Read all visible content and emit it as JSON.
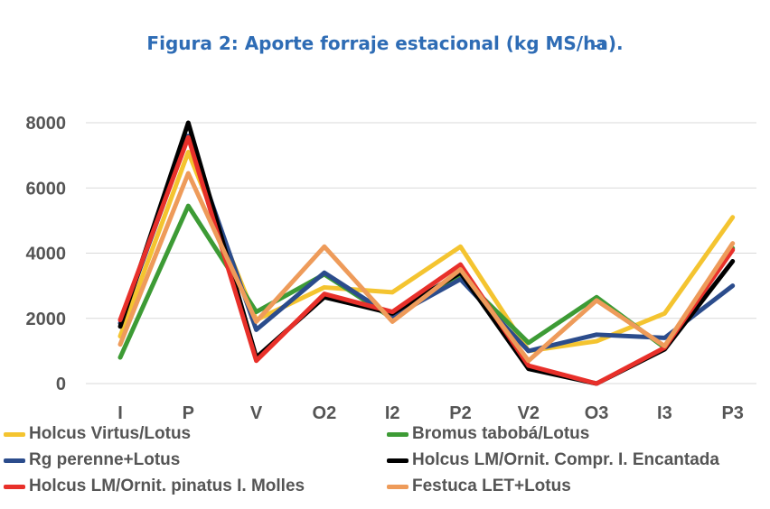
{
  "chart_data": {
    "type": "line",
    "title": "Figura 2: Aporte forraje estacional (kg MS/ha",
    "title_superscript": "-1",
    "title_end": ").",
    "categories": [
      "I",
      "P",
      "V",
      "O2",
      "I2",
      "P2",
      "V2",
      "O3",
      "I3",
      "P3"
    ],
    "ylim": [
      0,
      8000
    ],
    "yticks": [
      "0",
      "2000",
      "4000",
      "6000",
      "8000"
    ],
    "ytick_values": [
      0,
      2000,
      4000,
      6000,
      8000
    ],
    "grid": true,
    "legend_position": "bottom",
    "series": [
      {
        "name": "Holcus Virtus/Lotus",
        "color": "#f4c430",
        "values": [
          1450,
          7100,
          1950,
          2950,
          2800,
          4200,
          1000,
          1300,
          2150,
          5100
        ]
      },
      {
        "name": "Bromus tabobá/Lotus",
        "color": "#3d9b35",
        "values": [
          800,
          5450,
          2200,
          3350,
          2000,
          3300,
          1250,
          2650,
          1100,
          4150
        ]
      },
      {
        "name": "Rg perenne+Lotus",
        "color": "#2b4c8c",
        "values": [
          1850,
          7600,
          1650,
          3400,
          2050,
          3200,
          1000,
          1500,
          1400,
          3000
        ]
      },
      {
        "name": "Holcus LM/Ornit. Compr. I. Encantada",
        "color": "#000000",
        "values": [
          1750,
          8000,
          800,
          2650,
          2150,
          3400,
          450,
          0,
          1050,
          3750
        ]
      },
      {
        "name": "Holcus LM/Ornit. pinatus I. Molles",
        "color": "#e8302a",
        "values": [
          1950,
          7550,
          700,
          2750,
          2200,
          3650,
          550,
          0,
          1100,
          4100
        ]
      },
      {
        "name": "Festuca LET+Lotus",
        "color": "#ee9b5a",
        "values": [
          1200,
          6450,
          1900,
          4200,
          1900,
          3500,
          700,
          2550,
          1150,
          4300
        ]
      }
    ]
  }
}
